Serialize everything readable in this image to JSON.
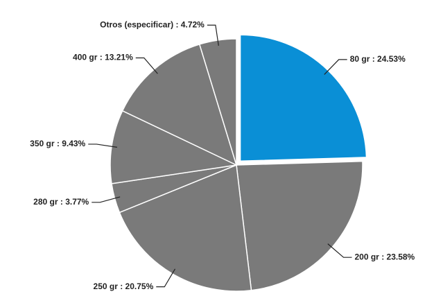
{
  "chart_data": {
    "type": "pie",
    "values": [
      24.53,
      23.58,
      20.75,
      3.77,
      9.43,
      13.21,
      4.72
    ],
    "value_labels": [
      "80 gr : 24.53%",
      "200 gr : 23.58%",
      "250 gr : 20.75%",
      "280 gr : 3.77%",
      "350 gr : 9.43%",
      "400 gr : 13.21%",
      "Otros (especificar) : 4.72%"
    ],
    "colors": [
      "#0a8fd6",
      "#7a7a7a",
      "#7a7a7a",
      "#7a7a7a",
      "#7a7a7a",
      "#7a7a7a",
      "#7a7a7a"
    ],
    "exploded": [
      true,
      false,
      false,
      false,
      false,
      false,
      false
    ]
  }
}
